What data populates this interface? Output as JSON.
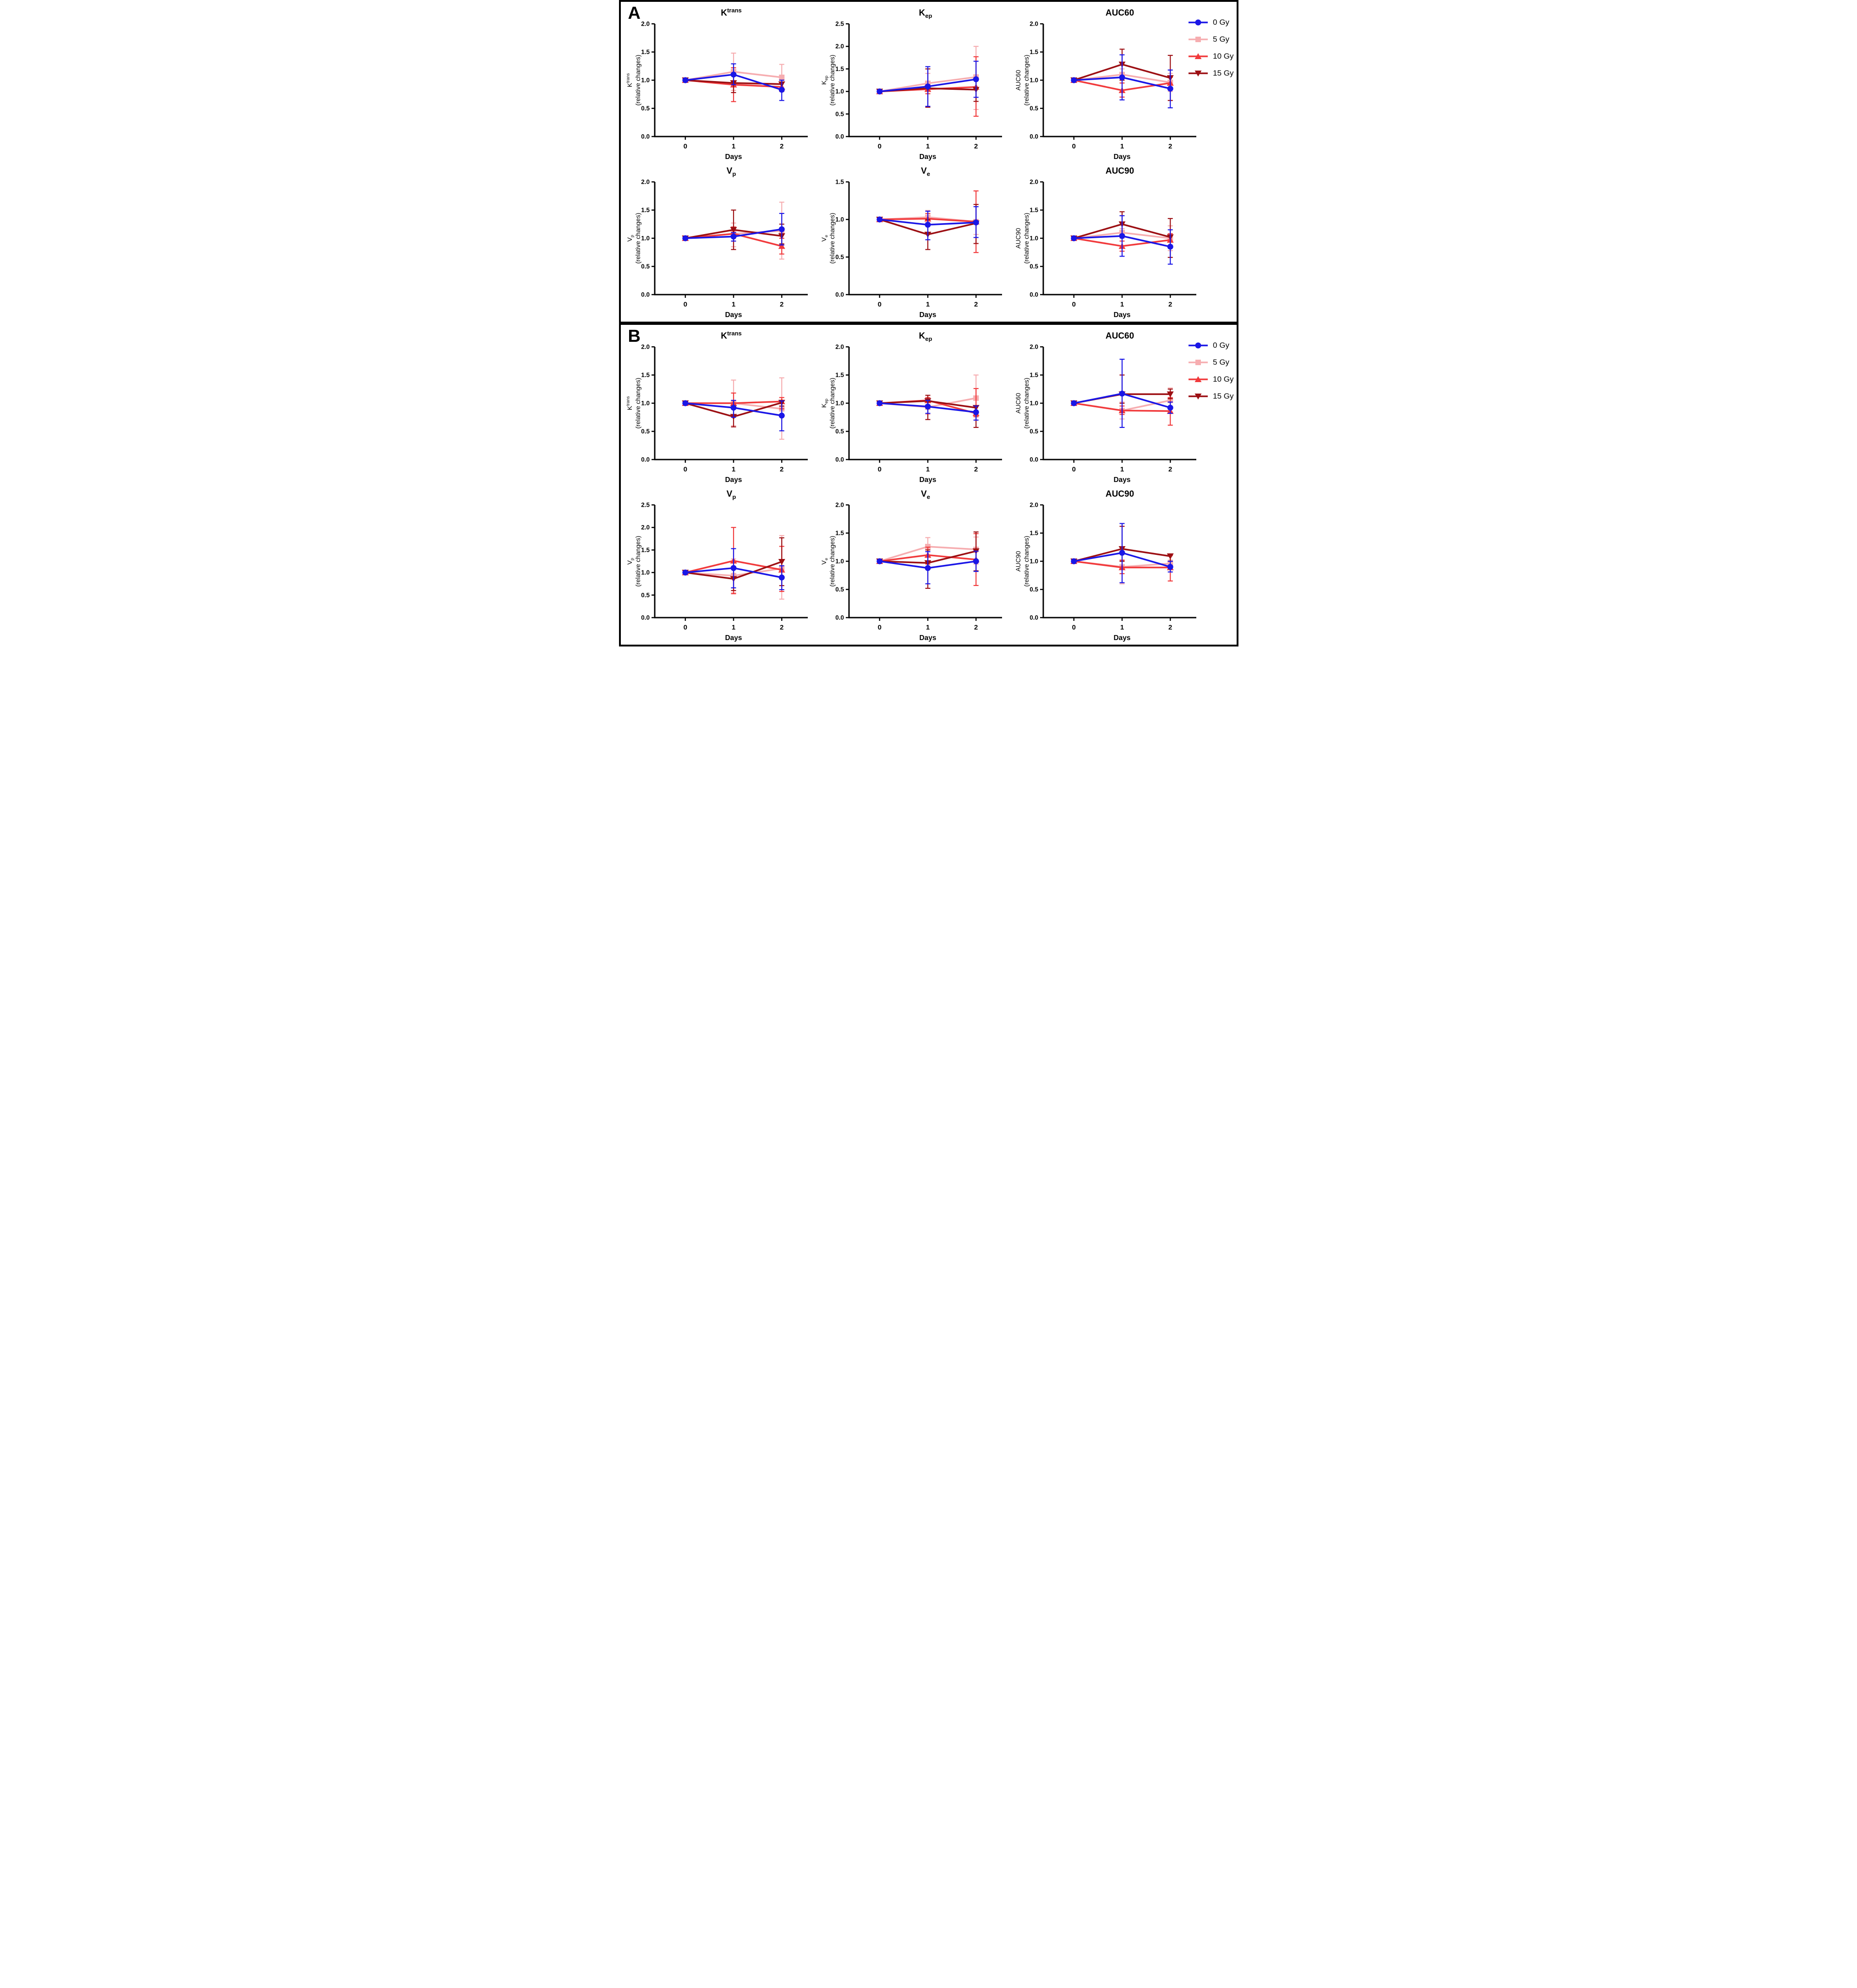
{
  "figure": {
    "panel_a_label": "A",
    "panel_b_label": "B"
  },
  "groups": [
    {
      "label": "0 Gy",
      "color": "#1a16e6",
      "marker": "circle"
    },
    {
      "label": "5 Gy",
      "color": "#f6adb0",
      "marker": "square"
    },
    {
      "label": "10 Gy",
      "color": "#f13a3c",
      "marker": "triangle-up"
    },
    {
      "label": "15 Gy",
      "color": "#9c0f13",
      "marker": "triangle-down"
    }
  ],
  "chart_data": [
    {
      "id": "A-ktrans",
      "panel": "A",
      "type": "line",
      "title": {
        "base": "K",
        "sup": "trans"
      },
      "ylabel": {
        "base": "K",
        "sup": "trans"
      },
      "ylabel2": "(relative changes)",
      "xlabel": "Days",
      "x": [
        0,
        1,
        2
      ],
      "ylim": [
        0,
        2.0
      ],
      "ytick_step": 0.5,
      "series": [
        {
          "group": "0 Gy",
          "values": [
            1.0,
            1.1,
            0.83
          ],
          "lo": [
            1.0,
            0.92,
            0.64
          ],
          "hi": [
            1.0,
            1.29,
            1.0
          ]
        },
        {
          "group": "5 Gy",
          "values": [
            1.0,
            1.15,
            1.05
          ],
          "lo": [
            1.0,
            0.82,
            0.82
          ],
          "hi": [
            1.0,
            1.48,
            1.28
          ]
        },
        {
          "group": "10 Gy",
          "values": [
            1.0,
            0.92,
            0.88
          ],
          "lo": [
            1.0,
            0.62,
            0.8
          ],
          "hi": [
            1.0,
            1.22,
            0.96
          ]
        },
        {
          "group": "15 Gy",
          "values": [
            1.0,
            0.95,
            0.93
          ],
          "lo": [
            1.0,
            0.78,
            0.85
          ],
          "hi": [
            1.0,
            1.12,
            1.0
          ]
        }
      ]
    },
    {
      "id": "A-kep",
      "panel": "A",
      "type": "line",
      "title": {
        "base": "K",
        "sub": "ep"
      },
      "ylabel": {
        "base": "K",
        "sub": "ep"
      },
      "ylabel2": "(relative changes)",
      "xlabel": "Days",
      "x": [
        0,
        1,
        2
      ],
      "ylim": [
        0,
        2.5
      ],
      "ytick_step": 0.5,
      "series": [
        {
          "group": "0 Gy",
          "values": [
            1.0,
            1.11,
            1.27
          ],
          "lo": [
            1.0,
            0.67,
            0.87
          ],
          "hi": [
            1.0,
            1.55,
            1.67
          ]
        },
        {
          "group": "5 Gy",
          "values": [
            1.0,
            1.18,
            1.32
          ],
          "lo": [
            1.0,
            0.95,
            0.6
          ],
          "hi": [
            1.0,
            1.4,
            2.0
          ]
        },
        {
          "group": "10 Gy",
          "values": [
            1.0,
            1.05,
            1.1
          ],
          "lo": [
            1.0,
            0.95,
            0.45
          ],
          "hi": [
            1.0,
            1.15,
            1.77
          ]
        },
        {
          "group": "15 Gy",
          "values": [
            1.0,
            1.07,
            1.04
          ],
          "lo": [
            1.0,
            0.65,
            0.78
          ],
          "hi": [
            1.0,
            1.5,
            1.3
          ]
        }
      ]
    },
    {
      "id": "A-auc60",
      "panel": "A",
      "type": "line",
      "title": {
        "base": "AUC60"
      },
      "ylabel": {
        "base": "AUC60"
      },
      "ylabel2": "(relative changes)",
      "xlabel": "Days",
      "x": [
        0,
        1,
        2
      ],
      "ylim": [
        0,
        2.0
      ],
      "ytick_step": 0.5,
      "series": [
        {
          "group": "0 Gy",
          "values": [
            1.0,
            1.05,
            0.85
          ],
          "lo": [
            1.0,
            0.65,
            0.51
          ],
          "hi": [
            1.0,
            1.45,
            1.18
          ]
        },
        {
          "group": "5 Gy",
          "values": [
            1.0,
            1.1,
            0.96
          ],
          "lo": [
            1.0,
            0.95,
            0.8
          ],
          "hi": [
            1.0,
            1.2,
            1.12
          ]
        },
        {
          "group": "10 Gy",
          "values": [
            1.0,
            0.82,
            0.95
          ],
          "lo": [
            1.0,
            0.7,
            0.85
          ],
          "hi": [
            1.0,
            0.95,
            1.05
          ]
        },
        {
          "group": "15 Gy",
          "values": [
            1.0,
            1.28,
            1.04
          ],
          "lo": [
            1.0,
            1.0,
            0.64
          ],
          "hi": [
            1.0,
            1.55,
            1.44
          ]
        }
      ]
    },
    {
      "id": "A-vp",
      "panel": "A",
      "type": "line",
      "title": {
        "base": "V",
        "sub": "p"
      },
      "ylabel": {
        "base": "V",
        "sub": "p"
      },
      "ylabel2": "(relative changes)",
      "xlabel": "Days",
      "x": [
        0,
        1,
        2
      ],
      "ylim": [
        0,
        2.0
      ],
      "ytick_step": 0.5,
      "series": [
        {
          "group": "0 Gy",
          "values": [
            1.0,
            1.03,
            1.16
          ],
          "lo": [
            1.0,
            0.95,
            0.88
          ],
          "hi": [
            1.0,
            1.1,
            1.44
          ]
        },
        {
          "group": "5 Gy",
          "values": [
            1.0,
            1.08,
            1.13
          ],
          "lo": [
            1.0,
            0.85,
            0.63
          ],
          "hi": [
            1.0,
            1.27,
            1.64
          ]
        },
        {
          "group": "10 Gy",
          "values": [
            1.0,
            1.08,
            0.86
          ],
          "lo": [
            1.0,
            0.95,
            0.72
          ],
          "hi": [
            1.0,
            1.2,
            1.0
          ]
        },
        {
          "group": "15 Gy",
          "values": [
            1.0,
            1.15,
            1.04
          ],
          "lo": [
            1.0,
            0.8,
            0.9
          ],
          "hi": [
            1.0,
            1.5,
            1.25
          ]
        }
      ]
    },
    {
      "id": "A-ve",
      "panel": "A",
      "type": "line",
      "title": {
        "base": "V",
        "sub": "e"
      },
      "ylabel": {
        "base": "V",
        "sub": "e"
      },
      "ylabel2": "(relative changes)",
      "xlabel": "Days",
      "x": [
        0,
        1,
        2
      ],
      "ylim": [
        0,
        1.5
      ],
      "ytick_step": 0.5,
      "series": [
        {
          "group": "0 Gy",
          "values": [
            1.0,
            0.93,
            0.96
          ],
          "lo": [
            1.0,
            0.73,
            0.76
          ],
          "hi": [
            1.0,
            1.11,
            1.17
          ]
        },
        {
          "group": "5 Gy",
          "values": [
            1.0,
            1.03,
            0.97
          ],
          "lo": [
            1.0,
            0.96,
            0.8
          ],
          "hi": [
            1.0,
            1.12,
            1.2
          ]
        },
        {
          "group": "10 Gy",
          "values": [
            1.0,
            1.01,
            0.97
          ],
          "lo": [
            1.0,
            0.93,
            0.56
          ],
          "hi": [
            1.0,
            1.08,
            1.38
          ]
        },
        {
          "group": "15 Gy",
          "values": [
            1.0,
            0.8,
            0.95
          ],
          "lo": [
            1.0,
            0.6,
            0.68
          ],
          "hi": [
            1.0,
            1.0,
            1.2
          ]
        }
      ]
    },
    {
      "id": "A-auc90",
      "panel": "A",
      "type": "line",
      "title": {
        "base": "AUC90"
      },
      "ylabel": {
        "base": "AUC90"
      },
      "ylabel2": "(relative changes)",
      "xlabel": "Days",
      "x": [
        0,
        1,
        2
      ],
      "ylim": [
        0,
        2.0
      ],
      "ytick_step": 0.5,
      "series": [
        {
          "group": "0 Gy",
          "values": [
            1.0,
            1.04,
            0.85
          ],
          "lo": [
            1.0,
            0.68,
            0.54
          ],
          "hi": [
            1.0,
            1.4,
            1.15
          ]
        },
        {
          "group": "5 Gy",
          "values": [
            1.0,
            1.1,
            1.0
          ],
          "lo": [
            1.0,
            1.0,
            0.78
          ],
          "hi": [
            1.0,
            1.17,
            1.22
          ]
        },
        {
          "group": "10 Gy",
          "values": [
            1.0,
            0.86,
            0.97
          ],
          "lo": [
            1.0,
            0.77,
            0.85
          ],
          "hi": [
            1.0,
            0.95,
            1.08
          ]
        },
        {
          "group": "15 Gy",
          "values": [
            1.0,
            1.25,
            1.02
          ],
          "lo": [
            1.0,
            1.05,
            0.66
          ],
          "hi": [
            1.0,
            1.47,
            1.35
          ]
        }
      ]
    },
    {
      "id": "B-ktrans",
      "panel": "B",
      "type": "line",
      "title": {
        "base": "K",
        "sup": "trans"
      },
      "ylabel": {
        "base": "K",
        "sup": "trans"
      },
      "ylabel2": "(relative changes)",
      "xlabel": "Days",
      "x": [
        0,
        1,
        2
      ],
      "ylim": [
        0,
        2.0
      ],
      "ytick_step": 0.5,
      "series": [
        {
          "group": "0 Gy",
          "values": [
            1.0,
            0.92,
            0.78
          ],
          "lo": [
            1.0,
            0.75,
            0.51
          ],
          "hi": [
            1.0,
            1.05,
            1.04
          ]
        },
        {
          "group": "5 Gy",
          "values": [
            1.0,
            1.0,
            0.9
          ],
          "lo": [
            1.0,
            0.6,
            0.36
          ],
          "hi": [
            1.0,
            1.41,
            1.45
          ]
        },
        {
          "group": "10 Gy",
          "values": [
            1.0,
            1.0,
            1.03
          ],
          "lo": [
            1.0,
            0.9,
            0.9
          ],
          "hi": [
            1.0,
            1.18,
            1.1
          ]
        },
        {
          "group": "15 Gy",
          "values": [
            1.0,
            0.76,
            1.01
          ],
          "lo": [
            1.0,
            0.58,
            0.95
          ],
          "hi": [
            1.0,
            0.95,
            1.05
          ]
        }
      ]
    },
    {
      "id": "B-kep",
      "panel": "B",
      "type": "line",
      "title": {
        "base": "K",
        "sub": "ep"
      },
      "ylabel": {
        "base": "K",
        "sub": "ep"
      },
      "ylabel2": "(relative changes)",
      "xlabel": "Days",
      "x": [
        0,
        1,
        2
      ],
      "ylim": [
        0,
        2.0
      ],
      "ytick_step": 0.5,
      "series": [
        {
          "group": "0 Gy",
          "values": [
            1.0,
            0.94,
            0.84
          ],
          "lo": [
            1.0,
            0.82,
            0.7
          ],
          "hi": [
            1.0,
            1.05,
            0.95
          ]
        },
        {
          "group": "5 Gy",
          "values": [
            1.0,
            0.93,
            1.09
          ],
          "lo": [
            1.0,
            0.8,
            0.7
          ],
          "hi": [
            1.0,
            1.05,
            1.5
          ]
        },
        {
          "group": "10 Gy",
          "values": [
            1.0,
            1.05,
            0.82
          ],
          "lo": [
            1.0,
            0.95,
            0.76
          ],
          "hi": [
            1.0,
            1.1,
            1.26
          ]
        },
        {
          "group": "15 Gy",
          "values": [
            1.0,
            1.04,
            0.92
          ],
          "lo": [
            1.0,
            0.71,
            0.57
          ],
          "hi": [
            1.0,
            1.14,
            0.95
          ]
        }
      ]
    },
    {
      "id": "B-auc60",
      "panel": "B",
      "type": "line",
      "title": {
        "base": "AUC60"
      },
      "ylabel": {
        "base": "AUC60"
      },
      "ylabel2": "(relative changes)",
      "xlabel": "Days",
      "x": [
        0,
        1,
        2
      ],
      "ylim": [
        0,
        2.0
      ],
      "ytick_step": 0.5,
      "series": [
        {
          "group": "0 Gy",
          "values": [
            1.0,
            1.17,
            0.92
          ],
          "lo": [
            1.0,
            0.57,
            0.82
          ],
          "hi": [
            1.0,
            1.78,
            1.02
          ]
        },
        {
          "group": "5 Gy",
          "values": [
            1.0,
            0.87,
            1.05
          ],
          "lo": [
            1.0,
            0.72,
            0.83
          ],
          "hi": [
            1.0,
            1.02,
            1.27
          ]
        },
        {
          "group": "10 Gy",
          "values": [
            1.0,
            0.87,
            0.86
          ],
          "lo": [
            1.0,
            0.8,
            0.61
          ],
          "hi": [
            1.0,
            0.95,
            1.1
          ]
        },
        {
          "group": "15 Gy",
          "values": [
            1.0,
            1.16,
            1.16
          ],
          "lo": [
            1.0,
            1.0,
            1.08
          ],
          "hi": [
            1.0,
            1.5,
            1.25
          ]
        }
      ]
    },
    {
      "id": "B-vp",
      "panel": "B",
      "type": "line",
      "title": {
        "base": "V",
        "sub": "p"
      },
      "ylabel": {
        "base": "V",
        "sub": "p"
      },
      "ylabel2": "(relative changes)",
      "xlabel": "Days",
      "x": [
        0,
        1,
        2
      ],
      "ylim": [
        0,
        2.5
      ],
      "ytick_step": 0.5,
      "series": [
        {
          "group": "0 Gy",
          "values": [
            1.0,
            1.1,
            0.89
          ],
          "lo": [
            1.0,
            0.66,
            0.62
          ],
          "hi": [
            1.0,
            1.53,
            1.15
          ]
        },
        {
          "group": "5 Gy",
          "values": [
            1.0,
            0.93,
            1.09
          ],
          "lo": [
            1.0,
            0.55,
            0.41
          ],
          "hi": [
            1.0,
            1.3,
            1.82
          ]
        },
        {
          "group": "10 Gy",
          "values": [
            1.0,
            1.26,
            1.06
          ],
          "lo": [
            1.0,
            0.53,
            0.58
          ],
          "hi": [
            1.0,
            2.0,
            1.58
          ]
        },
        {
          "group": "15 Gy",
          "values": [
            1.0,
            0.86,
            1.24
          ],
          "lo": [
            1.0,
            0.6,
            0.71
          ],
          "hi": [
            1.0,
            1.1,
            1.77
          ]
        }
      ]
    },
    {
      "id": "B-ve",
      "panel": "B",
      "type": "line",
      "title": {
        "base": "V",
        "sub": "e"
      },
      "ylabel": {
        "base": "V",
        "sub": "e"
      },
      "ylabel2": "(relative changes)",
      "xlabel": "Days",
      "x": [
        0,
        1,
        2
      ],
      "ylim": [
        0,
        2.0
      ],
      "ytick_step": 0.5,
      "series": [
        {
          "group": "0 Gy",
          "values": [
            1.0,
            0.88,
            1.0
          ],
          "lo": [
            1.0,
            0.6,
            0.82
          ],
          "hi": [
            1.0,
            1.17,
            1.18
          ]
        },
        {
          "group": "5 Gy",
          "values": [
            1.0,
            1.26,
            1.21
          ],
          "lo": [
            1.0,
            1.1,
            0.95
          ],
          "hi": [
            1.0,
            1.42,
            1.43
          ]
        },
        {
          "group": "10 Gy",
          "values": [
            1.0,
            1.11,
            1.03
          ],
          "lo": [
            1.0,
            0.95,
            0.57
          ],
          "hi": [
            1.0,
            1.25,
            1.49
          ]
        },
        {
          "group": "15 Gy",
          "values": [
            1.0,
            0.97,
            1.18
          ],
          "lo": [
            1.0,
            0.52,
            0.83
          ],
          "hi": [
            1.0,
            1.2,
            1.52
          ]
        }
      ]
    },
    {
      "id": "B-auc90",
      "panel": "B",
      "type": "line",
      "title": {
        "base": "AUC90"
      },
      "ylabel": {
        "base": "AUC90"
      },
      "ylabel2": "(relative changes)",
      "xlabel": "Days",
      "x": [
        0,
        1,
        2
      ],
      "ylim": [
        0,
        2.0
      ],
      "ytick_step": 0.5,
      "series": [
        {
          "group": "0 Gy",
          "values": [
            1.0,
            1.15,
            0.9
          ],
          "lo": [
            1.0,
            0.62,
            0.81
          ],
          "hi": [
            1.0,
            1.67,
            1.0
          ]
        },
        {
          "group": "5 Gy",
          "values": [
            1.0,
            0.9,
            0.96
          ],
          "lo": [
            1.0,
            0.6,
            0.9
          ],
          "hi": [
            1.0,
            1.02,
            1.02
          ]
        },
        {
          "group": "10 Gy",
          "values": [
            1.0,
            0.89,
            0.89
          ],
          "lo": [
            1.0,
            0.78,
            0.65
          ],
          "hi": [
            1.0,
            1.02,
            1.1
          ]
        },
        {
          "group": "15 Gy",
          "values": [
            1.0,
            1.22,
            1.09
          ],
          "lo": [
            1.0,
            1.0,
            1.0
          ],
          "hi": [
            1.0,
            1.62,
            1.13
          ]
        }
      ]
    }
  ]
}
